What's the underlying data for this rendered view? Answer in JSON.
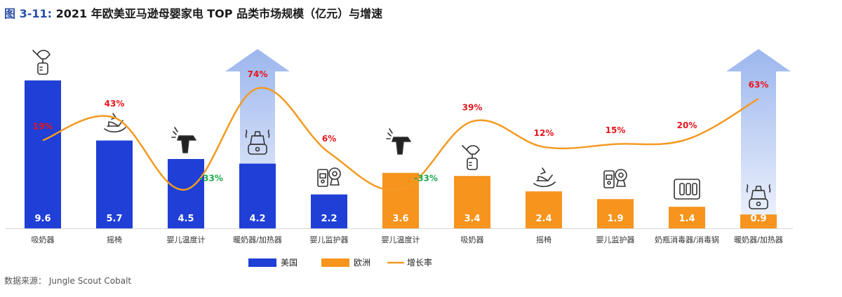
{
  "title": {
    "prefix": "图 3-11:",
    "text": "2021 年欧美亚马逊母婴家电 TOP 品类市场规模（亿元）与增速"
  },
  "source": "数据来源：  Jungle Scout Cobalt",
  "colors": {
    "us": "#1f3fd6",
    "eu": "#f7941d",
    "growth_line": "#f39a22",
    "rate_positive": "#e8141c",
    "rate_negative": "#1aa84a",
    "arrow": "#9cb6ee"
  },
  "chart_data": {
    "type": "bar",
    "categories": [
      "吸奶器",
      "摇椅",
      "婴儿温度计",
      "暖奶器/加热器",
      "婴儿监护器",
      "婴儿温度计",
      "吸奶器",
      "摇椅",
      "婴儿监护器",
      "奶瓶消毒器/消毒锅",
      "暖奶器/加热器"
    ],
    "values": [
      9.6,
      5.7,
      4.5,
      4.2,
      2.2,
      3.6,
      3.4,
      2.4,
      1.9,
      1.4,
      0.9
    ],
    "region": [
      "us",
      "us",
      "us",
      "us",
      "us",
      "eu",
      "eu",
      "eu",
      "eu",
      "eu",
      "eu"
    ],
    "growth": [
      19,
      43,
      -33,
      74,
      6,
      -33,
      39,
      12,
      15,
      20,
      63
    ],
    "growth_labels": [
      "19%",
      "43%",
      "-33%",
      "74%",
      "6%",
      "-33%",
      "39%",
      "12%",
      "15%",
      "20%",
      "63%"
    ],
    "value_labels": [
      "9.6",
      "5.7",
      "4.5",
      "4.2",
      "2.2",
      "3.6",
      "3.4",
      "2.4",
      "1.9",
      "1.4",
      "0.9"
    ],
    "highlight_arrows": [
      3,
      10
    ],
    "icons": [
      "breast-pump-icon",
      "rocker-icon",
      "thermometer-icon",
      "bottle-warmer-icon",
      "baby-monitor-icon",
      "thermometer-icon",
      "breast-pump-icon",
      "rocker-icon",
      "baby-monitor-icon",
      "sterilizer-icon",
      "bottle-warmer-icon"
    ],
    "legend": [
      {
        "name": "美国",
        "kind": "bar",
        "color_key": "us"
      },
      {
        "name": "欧洲",
        "kind": "bar",
        "color_key": "eu"
      },
      {
        "name": "增长率",
        "kind": "line",
        "color_key": "growth_line"
      }
    ],
    "legend_position": "bottom"
  }
}
